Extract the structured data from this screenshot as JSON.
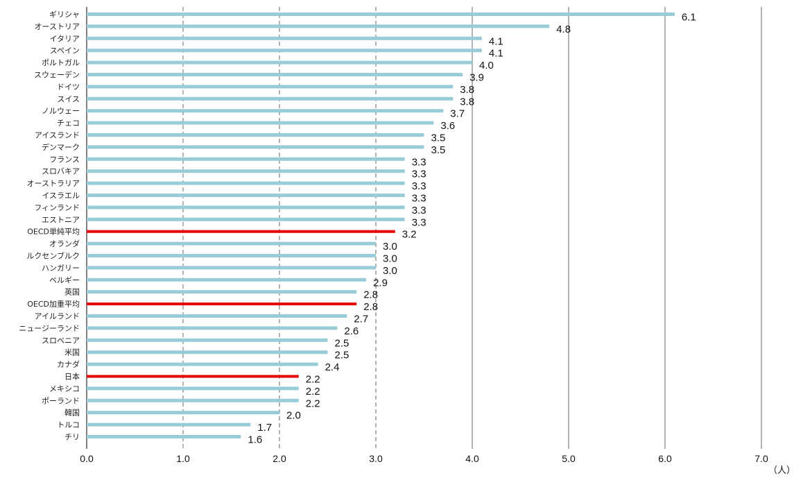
{
  "chart_data": {
    "type": "bar",
    "orientation": "horizontal",
    "categories": [
      "ギリシャ",
      "オーストリア",
      "イタリア",
      "スペイン",
      "ポルトガル",
      "スウェーデン",
      "ドイツ",
      "スイス",
      "ノルウェー",
      "チェコ",
      "アイスランド",
      "デンマーク",
      "フランス",
      "スロバキア",
      "オーストラリア",
      "イスラエル",
      "フィンランド",
      "エストニア",
      "OECD単純平均",
      "オランダ",
      "ルクセンブルク",
      "ハンガリー",
      "ベルギー",
      "英国",
      "OECD加重平均",
      "アイルランド",
      "ニュージーランド",
      "スロベニア",
      "米国",
      "カナダ",
      "日本",
      "メキシコ",
      "ポーランド",
      "韓国",
      "トルコ",
      "チリ"
    ],
    "values": [
      6.1,
      4.8,
      4.1,
      4.1,
      4.0,
      3.9,
      3.8,
      3.8,
      3.7,
      3.6,
      3.5,
      3.5,
      3.3,
      3.3,
      3.3,
      3.3,
      3.3,
      3.3,
      3.2,
      3.0,
      3.0,
      3.0,
      2.9,
      2.8,
      2.8,
      2.7,
      2.6,
      2.5,
      2.5,
      2.4,
      2.2,
      2.2,
      2.2,
      2.0,
      1.7,
      1.6
    ],
    "highlighted": [
      "OECD単純平均",
      "OECD加重平均",
      "日本"
    ],
    "value_labels": [
      "6.1",
      "4.8",
      "4.1",
      "4.1",
      "4.0",
      "3.9",
      "3.8",
      "3.8",
      "3.7",
      "3.6",
      "3.5",
      "3.5",
      "3.3",
      "3.3",
      "3.3",
      "3.3",
      "3.3",
      "3.3",
      "3.2",
      "3.0",
      "3.0",
      "3.0",
      "2.9",
      "2.8",
      "2.8",
      "2.7",
      "2.6",
      "2.5",
      "2.5",
      "2.4",
      "2.2",
      "2.2",
      "2.2",
      "2.0",
      "1.7",
      "1.6"
    ],
    "xlim": [
      0,
      7
    ],
    "xticks": [
      "0.0",
      "1.0",
      "2.0",
      "3.0",
      "4.0",
      "5.0",
      "6.0",
      "7.0"
    ],
    "unit": "（人）",
    "grid": "vertical dashed at 1.0-3.0, solid at 4.0-7.0",
    "colors": {
      "bar": "#99ccd9",
      "highlight": "#e60000",
      "grid": "#808080"
    }
  }
}
